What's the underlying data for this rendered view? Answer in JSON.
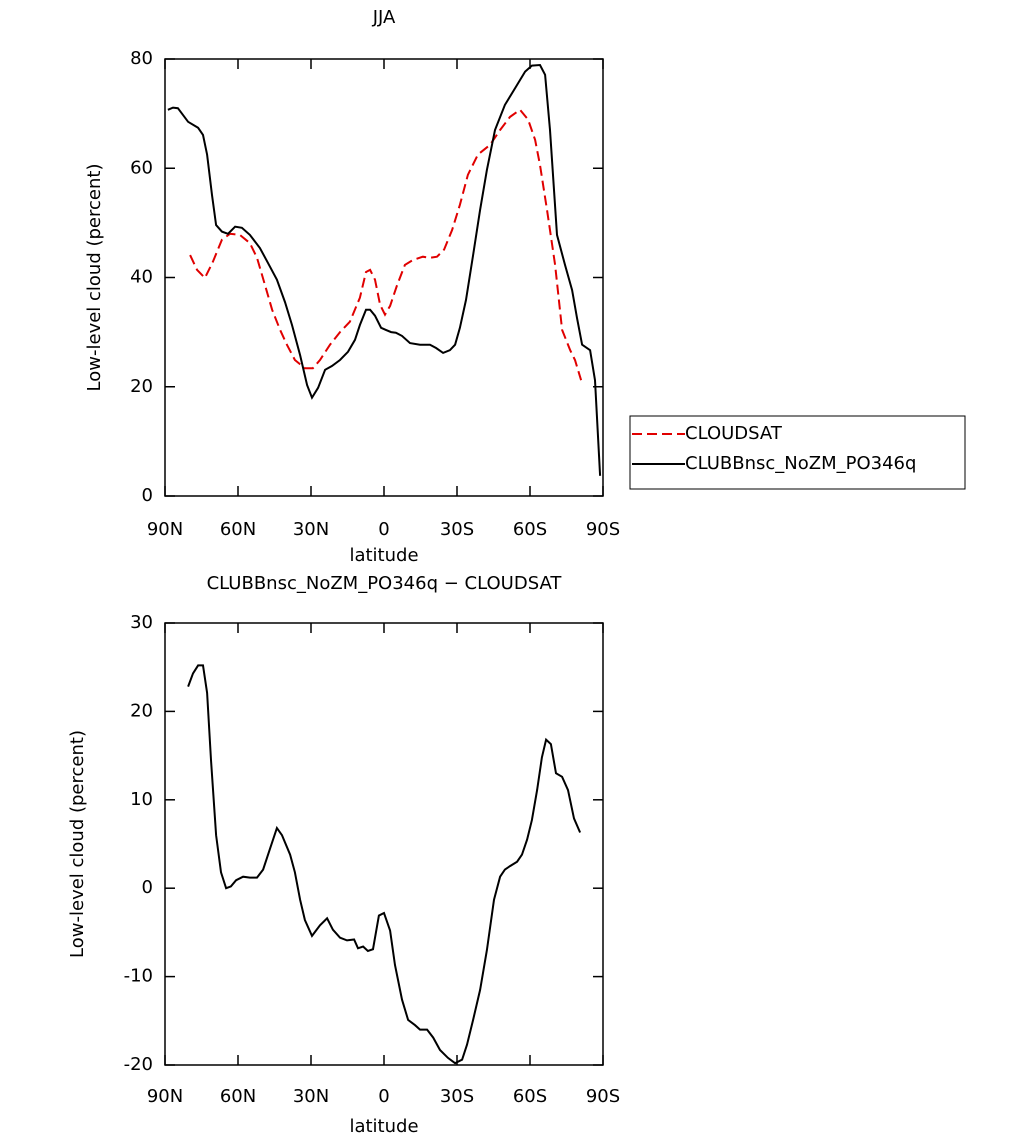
{
  "chart_data": [
    {
      "type": "line",
      "title": "JJA",
      "xlabel": "latitude",
      "ylabel": "Low-level cloud (percent)",
      "xlim": [
        90,
        -90
      ],
      "xticks": [
        {
          "value": 90,
          "label": "90N"
        },
        {
          "value": 60,
          "label": "60N"
        },
        {
          "value": 30,
          "label": "30N"
        },
        0,
        {
          "value": -30,
          "label": "30S"
        },
        {
          "value": -60,
          "label": "60S"
        },
        {
          "value": -90,
          "label": "90S"
        }
      ],
      "ylim": [
        0,
        80
      ],
      "yticks": [
        0,
        20,
        40,
        60,
        80
      ],
      "legend": "right",
      "series": [
        {
          "name": "CLOUDSAT",
          "color": "#e00000",
          "dash": true,
          "x": [
            79.7,
            76.8,
            73.6,
            70.3,
            66.6,
            63.3,
            59.2,
            55.1,
            52.2,
            48.9,
            46,
            42.7,
            39.9,
            36.6,
            32.5,
            29.2,
            26.3,
            22.2,
            18.1,
            14,
            9.9,
            7.4,
            5.7,
            3.7,
            1.6,
            -0.4,
            -2.5,
            -5.4,
            -8.6,
            -11.9,
            -16,
            -18.9,
            -21.8,
            -24.7,
            -28,
            -31.2,
            -34.5,
            -38.6,
            -43.6,
            -47.7,
            -51.8,
            -55.9,
            -59.2,
            -62.1,
            -64.1,
            -67,
            -70.3,
            -73.2,
            -76.5,
            -78.5,
            -81
          ],
          "values": [
            44.1,
            41.4,
            39.9,
            42.9,
            46.9,
            48,
            47.8,
            46.3,
            43.6,
            38.6,
            34.1,
            30.4,
            27.7,
            24.9,
            23.4,
            23.4,
            24.9,
            27.7,
            30,
            31.9,
            36.3,
            41,
            41.4,
            39.6,
            35,
            33.2,
            34.8,
            38.6,
            42.3,
            43.2,
            43.8,
            43.6,
            43.8,
            45.1,
            48.7,
            53.3,
            58.8,
            62.5,
            64.3,
            67,
            69.4,
            70.7,
            68.9,
            65.2,
            60.6,
            52.4,
            42.3,
            30.4,
            26.7,
            24.9,
            21.2
          ]
        },
        {
          "name": "CLUBBnsc_NoZM_PO346q",
          "color": "#000000",
          "dash": false,
          "x": [
            88.8,
            86.7,
            84.7,
            80.5,
            76.4,
            74.4,
            72.7,
            70.7,
            69,
            66.6,
            64.1,
            61.2,
            58.4,
            55.1,
            51,
            47.7,
            44,
            40.7,
            37.8,
            34.5,
            31.6,
            29.6,
            27.1,
            24.2,
            21.4,
            18.1,
            14.8,
            11.9,
            9.9,
            7.4,
            5.7,
            3.7,
            1.2,
            -0.8,
            -2.9,
            -4.9,
            -7.4,
            -10.7,
            -14.8,
            -18.9,
            -21.4,
            -24.3,
            -27.1,
            -29.2,
            -31.2,
            -33.7,
            -36.6,
            -39.5,
            -42.3,
            -45.6,
            -49.7,
            -53.9,
            -58,
            -60.8,
            -64.1,
            -66.2,
            -68.2,
            -71.1,
            -74.4,
            -77.3,
            -79.3,
            -81.4,
            -84.7,
            -86.7,
            -88.8
          ],
          "values": [
            70.7,
            71.1,
            71,
            68.5,
            67.4,
            66.1,
            62.5,
            55.1,
            49.6,
            48.4,
            48,
            49.3,
            49.1,
            47.8,
            45.4,
            42.7,
            39.6,
            35.5,
            31.3,
            25.8,
            20.3,
            18,
            19.8,
            23.1,
            23.8,
            24.9,
            26.4,
            28.6,
            31.3,
            34.1,
            34.1,
            33,
            30.8,
            30.4,
            30,
            29.9,
            29.3,
            28,
            27.7,
            27.7,
            27.1,
            26.2,
            26.7,
            27.7,
            30.8,
            35.9,
            44.1,
            52.4,
            59.7,
            67,
            71.6,
            74.7,
            77.7,
            78.8,
            78.9,
            77.1,
            67,
            47.8,
            42.3,
            37.7,
            32.6,
            27.7,
            26.7,
            21.2,
            3.7
          ]
        }
      ]
    },
    {
      "type": "line",
      "title": "CLUBBnsc_NoZM_PO346q − CLOUDSAT",
      "xlabel": "latitude",
      "ylabel": "Low-level cloud (percent)",
      "xlim": [
        90,
        -90
      ],
      "xticks": [
        {
          "value": 90,
          "label": "90N"
        },
        {
          "value": 60,
          "label": "60N"
        },
        {
          "value": 30,
          "label": "30N"
        },
        0,
        {
          "value": -30,
          "label": "30S"
        },
        {
          "value": -60,
          "label": "60S"
        },
        {
          "value": -90,
          "label": "90S"
        }
      ],
      "ylim": [
        -20,
        30
      ],
      "yticks": [
        -20,
        -10,
        0,
        10,
        20,
        30
      ],
      "series": [
        {
          "color": "#000000",
          "dash": false,
          "x": [
            80.5,
            78.5,
            76.4,
            74.4,
            72.7,
            71.1,
            69,
            67,
            64.9,
            62.9,
            60.8,
            57.9,
            55.1,
            52.2,
            49.7,
            46.8,
            44,
            41.9,
            38.6,
            36.6,
            34.5,
            32.5,
            29.6,
            26.3,
            23.4,
            21,
            18.1,
            15.2,
            12.3,
            10.7,
            8.6,
            6.6,
            4.5,
            2.1,
            0,
            -2.5,
            -4.5,
            -7.4,
            -9.9,
            -12.8,
            -14.8,
            -17.7,
            -20.2,
            -23,
            -26.3,
            -29.2,
            -32.1,
            -34.1,
            -36.6,
            -39.5,
            -42.3,
            -45.2,
            -47.7,
            -49.7,
            -51.8,
            -54.7,
            -56.7,
            -58.8,
            -60.8,
            -62.9,
            -64.9,
            -66.6,
            -68.6,
            -70.7,
            -73.2,
            -75.6,
            -78.1,
            -80.6
          ],
          "values": [
            22.8,
            24.3,
            25.2,
            25.2,
            22.1,
            14.5,
            6,
            1.8,
            0,
            0.2,
            0.9,
            1.3,
            1.2,
            1.2,
            2.1,
            4.5,
            6.8,
            6,
            3.8,
            1.8,
            -1.3,
            -3.6,
            -5.4,
            -4.2,
            -3.4,
            -4.7,
            -5.6,
            -5.9,
            -5.8,
            -6.8,
            -6.6,
            -7.1,
            -6.9,
            -3.1,
            -2.8,
            -4.8,
            -8.7,
            -12.6,
            -14.9,
            -15.5,
            -16,
            -16,
            -16.9,
            -18.3,
            -19.2,
            -19.8,
            -19.4,
            -17.7,
            -14.9,
            -11.5,
            -7,
            -1.3,
            1.3,
            2.1,
            2.5,
            3,
            3.8,
            5.5,
            7.7,
            11.1,
            14.8,
            16.8,
            16.3,
            13,
            12.6,
            11.1,
            7.9,
            6.3
          ]
        }
      ]
    }
  ]
}
